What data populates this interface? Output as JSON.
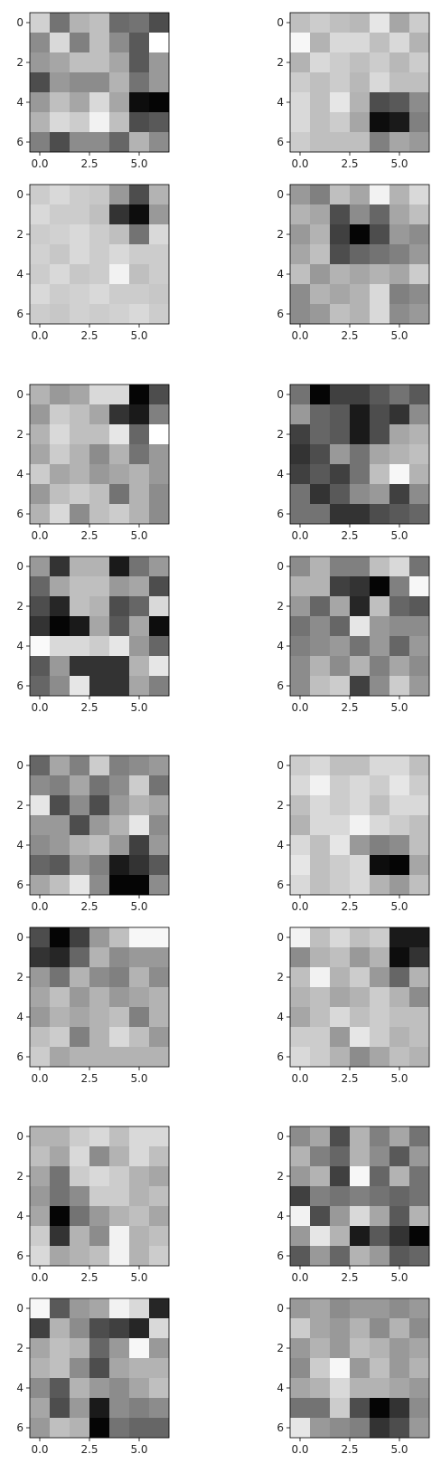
{
  "chart_data": {
    "type": "heatmap",
    "colormap": "gray",
    "xticks": [
      "0.0",
      "2.5",
      "5.0"
    ],
    "yticks": [
      "0",
      "2",
      "4",
      "6"
    ],
    "panels": [
      {
        "values": [
          [
            0.82,
            0.45,
            0.7,
            0.75,
            0.42,
            0.45,
            0.3
          ],
          [
            0.55,
            0.85,
            0.5,
            0.75,
            0.55,
            0.35,
            1.0
          ],
          [
            0.6,
            0.65,
            0.75,
            0.75,
            0.65,
            0.35,
            0.6
          ],
          [
            0.3,
            0.6,
            0.55,
            0.55,
            0.7,
            0.45,
            0.6
          ],
          [
            0.6,
            0.75,
            0.65,
            0.85,
            0.65,
            0.05,
            0.02
          ],
          [
            0.7,
            0.85,
            0.8,
            0.95,
            0.75,
            0.3,
            0.35
          ],
          [
            0.5,
            0.3,
            0.55,
            0.55,
            0.4,
            0.7,
            0.55
          ]
        ]
      },
      {
        "values": [
          [
            0.75,
            0.8,
            0.75,
            0.72,
            0.9,
            0.65,
            0.8
          ],
          [
            0.97,
            0.7,
            0.85,
            0.85,
            0.75,
            0.85,
            0.7
          ],
          [
            0.7,
            0.85,
            0.8,
            0.75,
            0.8,
            0.72,
            0.8
          ],
          [
            0.8,
            0.75,
            0.8,
            0.72,
            0.85,
            0.75,
            0.75
          ],
          [
            0.85,
            0.75,
            0.9,
            0.7,
            0.3,
            0.35,
            0.55
          ],
          [
            0.85,
            0.75,
            0.8,
            0.65,
            0.05,
            0.1,
            0.5
          ],
          [
            0.8,
            0.75,
            0.75,
            0.75,
            0.5,
            0.65,
            0.6
          ]
        ]
      },
      {
        "values": [
          [
            0.8,
            0.85,
            0.8,
            0.78,
            0.6,
            0.3,
            0.7
          ],
          [
            0.85,
            0.8,
            0.8,
            0.75,
            0.2,
            0.05,
            0.6
          ],
          [
            0.8,
            0.82,
            0.85,
            0.8,
            0.75,
            0.45,
            0.85
          ],
          [
            0.82,
            0.78,
            0.85,
            0.8,
            0.85,
            0.8,
            0.8
          ],
          [
            0.8,
            0.85,
            0.78,
            0.8,
            0.95,
            0.75,
            0.8
          ],
          [
            0.85,
            0.8,
            0.82,
            0.85,
            0.8,
            0.8,
            0.78
          ],
          [
            0.8,
            0.78,
            0.82,
            0.8,
            0.82,
            0.85,
            0.8
          ]
        ]
      },
      {
        "values": [
          [
            0.6,
            0.5,
            0.75,
            0.65,
            0.95,
            0.7,
            0.85
          ],
          [
            0.7,
            0.65,
            0.3,
            0.55,
            0.4,
            0.65,
            0.75
          ],
          [
            0.6,
            0.7,
            0.25,
            0.02,
            0.3,
            0.6,
            0.55
          ],
          [
            0.65,
            0.75,
            0.3,
            0.4,
            0.45,
            0.5,
            0.6
          ],
          [
            0.75,
            0.6,
            0.7,
            0.65,
            0.7,
            0.65,
            0.8
          ],
          [
            0.55,
            0.7,
            0.65,
            0.7,
            0.85,
            0.5,
            0.55
          ],
          [
            0.55,
            0.6,
            0.75,
            0.7,
            0.85,
            0.55,
            0.6
          ]
        ]
      },
      {
        "values": [
          [
            0.7,
            0.6,
            0.65,
            0.85,
            0.85,
            0.02,
            0.3
          ],
          [
            0.6,
            0.8,
            0.75,
            0.65,
            0.2,
            0.1,
            0.5
          ],
          [
            0.7,
            0.85,
            0.75,
            0.75,
            0.9,
            0.4,
            1.0
          ],
          [
            0.65,
            0.8,
            0.7,
            0.55,
            0.7,
            0.45,
            0.6
          ],
          [
            0.8,
            0.65,
            0.7,
            0.6,
            0.65,
            0.7,
            0.6
          ],
          [
            0.6,
            0.75,
            0.8,
            0.75,
            0.45,
            0.7,
            0.55
          ],
          [
            0.7,
            0.85,
            0.55,
            0.75,
            0.8,
            0.7,
            0.55
          ]
        ]
      },
      {
        "values": [
          [
            0.45,
            0.02,
            0.25,
            0.25,
            0.35,
            0.45,
            0.35
          ],
          [
            0.6,
            0.4,
            0.35,
            0.1,
            0.3,
            0.2,
            0.55
          ],
          [
            0.25,
            0.4,
            0.35,
            0.1,
            0.3,
            0.65,
            0.7
          ],
          [
            0.2,
            0.3,
            0.6,
            0.45,
            0.65,
            0.7,
            0.75
          ],
          [
            0.25,
            0.35,
            0.25,
            0.45,
            0.75,
            0.97,
            0.7
          ],
          [
            0.45,
            0.2,
            0.35,
            0.55,
            0.6,
            0.25,
            0.55
          ],
          [
            0.45,
            0.45,
            0.2,
            0.2,
            0.3,
            0.35,
            0.4
          ]
        ]
      },
      {
        "values": [
          [
            0.6,
            0.2,
            0.7,
            0.7,
            0.1,
            0.45,
            0.6
          ],
          [
            0.4,
            0.65,
            0.75,
            0.75,
            0.6,
            0.65,
            0.3
          ],
          [
            0.3,
            0.15,
            0.75,
            0.7,
            0.3,
            0.4,
            0.85
          ],
          [
            0.2,
            0.02,
            0.1,
            0.65,
            0.35,
            0.65,
            0.05
          ],
          [
            0.98,
            0.85,
            0.85,
            0.8,
            0.9,
            0.6,
            0.4
          ],
          [
            0.35,
            0.6,
            0.2,
            0.2,
            0.2,
            0.7,
            0.9
          ],
          [
            0.4,
            0.55,
            0.9,
            0.2,
            0.2,
            0.65,
            0.5
          ]
        ]
      },
      {
        "values": [
          [
            0.55,
            0.7,
            0.5,
            0.5,
            0.75,
            0.85,
            0.45
          ],
          [
            0.7,
            0.7,
            0.25,
            0.2,
            0.02,
            0.5,
            0.97
          ],
          [
            0.6,
            0.4,
            0.65,
            0.15,
            0.75,
            0.4,
            0.35
          ],
          [
            0.45,
            0.55,
            0.4,
            0.9,
            0.6,
            0.55,
            0.55
          ],
          [
            0.5,
            0.55,
            0.6,
            0.45,
            0.6,
            0.4,
            0.6
          ],
          [
            0.55,
            0.7,
            0.55,
            0.7,
            0.5,
            0.65,
            0.55
          ],
          [
            0.55,
            0.75,
            0.8,
            0.25,
            0.55,
            0.8,
            0.6
          ]
        ]
      },
      {
        "values": [
          [
            0.4,
            0.65,
            0.5,
            0.8,
            0.5,
            0.55,
            0.6
          ],
          [
            0.55,
            0.5,
            0.65,
            0.45,
            0.55,
            0.8,
            0.45
          ],
          [
            0.9,
            0.3,
            0.55,
            0.3,
            0.6,
            0.7,
            0.65
          ],
          [
            0.6,
            0.6,
            0.3,
            0.6,
            0.7,
            0.9,
            0.55
          ],
          [
            0.55,
            0.6,
            0.7,
            0.75,
            0.6,
            0.25,
            0.6
          ],
          [
            0.4,
            0.35,
            0.6,
            0.5,
            0.1,
            0.2,
            0.35
          ],
          [
            0.65,
            0.75,
            0.9,
            0.55,
            0.02,
            0.02,
            0.55
          ]
        ]
      },
      {
        "values": [
          [
            0.8,
            0.85,
            0.75,
            0.75,
            0.85,
            0.85,
            0.75
          ],
          [
            0.85,
            0.95,
            0.8,
            0.85,
            0.8,
            0.9,
            0.8
          ],
          [
            0.75,
            0.85,
            0.8,
            0.85,
            0.75,
            0.85,
            0.85
          ],
          [
            0.7,
            0.85,
            0.85,
            0.95,
            0.85,
            0.8,
            0.75
          ],
          [
            0.85,
            0.75,
            0.9,
            0.6,
            0.5,
            0.55,
            0.75
          ],
          [
            0.9,
            0.75,
            0.8,
            0.85,
            0.05,
            0.02,
            0.65
          ],
          [
            0.85,
            0.75,
            0.8,
            0.85,
            0.7,
            0.6,
            0.75
          ]
        ]
      },
      {
        "values": [
          [
            0.3,
            0.02,
            0.25,
            0.6,
            0.75,
            0.97,
            0.97
          ],
          [
            0.2,
            0.15,
            0.4,
            0.7,
            0.55,
            0.6,
            0.6
          ],
          [
            0.6,
            0.45,
            0.7,
            0.55,
            0.5,
            0.7,
            0.55
          ],
          [
            0.65,
            0.75,
            0.6,
            0.7,
            0.6,
            0.65,
            0.7
          ],
          [
            0.6,
            0.7,
            0.65,
            0.7,
            0.75,
            0.5,
            0.7
          ],
          [
            0.75,
            0.8,
            0.5,
            0.7,
            0.85,
            0.75,
            0.6
          ],
          [
            0.8,
            0.65,
            0.7,
            0.7,
            0.7,
            0.7,
            0.7
          ]
        ]
      },
      {
        "values": [
          [
            0.95,
            0.75,
            0.85,
            0.75,
            0.8,
            0.1,
            0.1
          ],
          [
            0.55,
            0.7,
            0.75,
            0.6,
            0.7,
            0.05,
            0.2
          ],
          [
            0.75,
            0.95,
            0.7,
            0.8,
            0.6,
            0.4,
            0.7
          ],
          [
            0.7,
            0.75,
            0.65,
            0.7,
            0.8,
            0.7,
            0.55
          ],
          [
            0.65,
            0.75,
            0.85,
            0.75,
            0.8,
            0.75,
            0.75
          ],
          [
            0.8,
            0.8,
            0.6,
            0.9,
            0.8,
            0.7,
            0.75
          ],
          [
            0.85,
            0.8,
            0.7,
            0.55,
            0.65,
            0.75,
            0.7
          ]
        ]
      },
      {
        "values": [
          [
            0.7,
            0.7,
            0.8,
            0.85,
            0.75,
            0.85,
            0.85
          ],
          [
            0.75,
            0.65,
            0.85,
            0.55,
            0.7,
            0.85,
            0.75
          ],
          [
            0.65,
            0.45,
            0.8,
            0.85,
            0.8,
            0.7,
            0.65
          ],
          [
            0.6,
            0.45,
            0.55,
            0.8,
            0.8,
            0.7,
            0.75
          ],
          [
            0.65,
            0.02,
            0.45,
            0.6,
            0.7,
            0.75,
            0.65
          ],
          [
            0.8,
            0.2,
            0.7,
            0.55,
            0.95,
            0.7,
            0.75
          ],
          [
            0.85,
            0.65,
            0.7,
            0.75,
            0.95,
            0.7,
            0.8
          ]
        ]
      },
      {
        "values": [
          [
            0.55,
            0.65,
            0.3,
            0.7,
            0.5,
            0.65,
            0.45
          ],
          [
            0.7,
            0.5,
            0.4,
            0.7,
            0.55,
            0.35,
            0.6
          ],
          [
            0.6,
            0.7,
            0.25,
            0.97,
            0.4,
            0.7,
            0.45
          ],
          [
            0.25,
            0.5,
            0.45,
            0.5,
            0.45,
            0.4,
            0.45
          ],
          [
            0.95,
            0.3,
            0.6,
            0.85,
            0.65,
            0.35,
            0.7
          ],
          [
            0.6,
            0.9,
            0.7,
            0.1,
            0.35,
            0.2,
            0.02
          ],
          [
            0.35,
            0.6,
            0.4,
            0.7,
            0.6,
            0.35,
            0.4
          ]
        ]
      },
      {
        "values": [
          [
            0.97,
            0.35,
            0.6,
            0.65,
            0.95,
            0.85,
            0.15
          ],
          [
            0.25,
            0.7,
            0.55,
            0.3,
            0.25,
            0.15,
            0.85
          ],
          [
            0.65,
            0.75,
            0.7,
            0.4,
            0.6,
            0.97,
            0.6
          ],
          [
            0.7,
            0.75,
            0.55,
            0.3,
            0.65,
            0.7,
            0.7
          ],
          [
            0.55,
            0.35,
            0.7,
            0.6,
            0.55,
            0.65,
            0.75
          ],
          [
            0.65,
            0.3,
            0.6,
            0.1,
            0.55,
            0.5,
            0.55
          ],
          [
            0.6,
            0.75,
            0.7,
            0.02,
            0.45,
            0.4,
            0.4
          ]
        ]
      },
      {
        "values": [
          [
            0.6,
            0.65,
            0.55,
            0.6,
            0.6,
            0.55,
            0.6
          ],
          [
            0.8,
            0.65,
            0.6,
            0.7,
            0.55,
            0.7,
            0.55
          ],
          [
            0.6,
            0.7,
            0.6,
            0.75,
            0.7,
            0.6,
            0.65
          ],
          [
            0.55,
            0.8,
            0.97,
            0.6,
            0.75,
            0.6,
            0.7
          ],
          [
            0.65,
            0.7,
            0.85,
            0.7,
            0.7,
            0.65,
            0.6
          ],
          [
            0.45,
            0.45,
            0.8,
            0.3,
            0.02,
            0.2,
            0.55
          ],
          [
            0.9,
            0.6,
            0.55,
            0.5,
            0.2,
            0.3,
            0.6
          ]
        ]
      }
    ]
  }
}
